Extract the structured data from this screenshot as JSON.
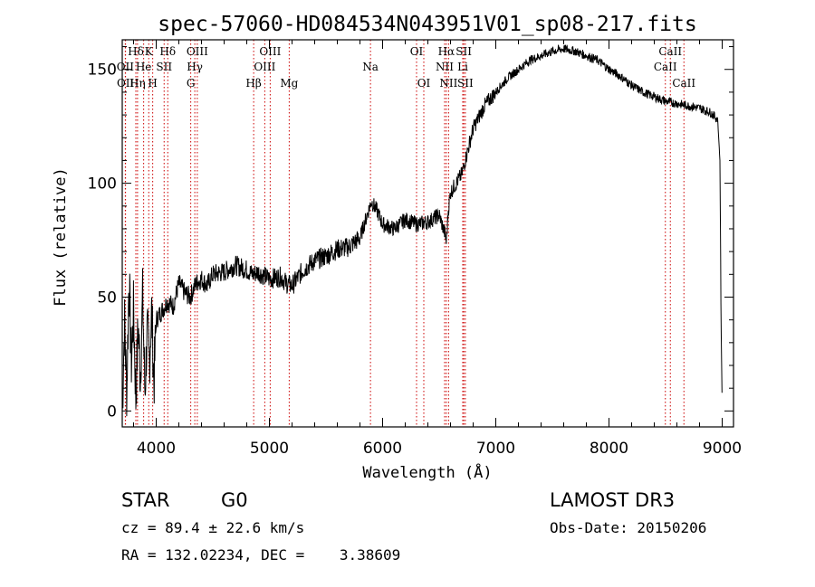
{
  "chart_data": {
    "type": "line",
    "title": "spec-57060-HD084534N043951V01_sp08-217.fits",
    "xlabel": "Wavelength (Å)",
    "ylabel": "Flux (relative)",
    "xlim": [
      3700,
      9100
    ],
    "ylim": [
      -7,
      163
    ],
    "x_ticks": [
      4000,
      5000,
      6000,
      7000,
      8000,
      9000
    ],
    "y_ticks": [
      0,
      50,
      100,
      150
    ],
    "series": [
      {
        "name": "flux",
        "x": [
          3700,
          3720,
          3740,
          3760,
          3780,
          3800,
          3820,
          3840,
          3860,
          3880,
          3900,
          3920,
          3940,
          3960,
          3980,
          4000,
          4050,
          4100,
          4150,
          4200,
          4250,
          4300,
          4350,
          4400,
          4450,
          4500,
          4600,
          4700,
          4800,
          4850,
          4900,
          5000,
          5100,
          5150,
          5200,
          5300,
          5400,
          5500,
          5600,
          5700,
          5800,
          5850,
          5900,
          5950,
          6000,
          6100,
          6200,
          6300,
          6400,
          6500,
          6550,
          6563,
          6580,
          6600,
          6700,
          6800,
          6900,
          7000,
          7100,
          7200,
          7300,
          7400,
          7500,
          7600,
          7700,
          7800,
          7900,
          8000,
          8100,
          8200,
          8300,
          8400,
          8500,
          8600,
          8700,
          8800,
          8900,
          8960,
          8980,
          8990,
          9000
        ],
        "values": [
          0,
          40,
          8,
          60,
          20,
          45,
          5,
          38,
          15,
          50,
          8,
          35,
          22,
          45,
          12,
          40,
          44,
          48,
          46,
          56,
          52,
          50,
          56,
          58,
          55,
          60,
          61,
          64,
          62,
          60,
          61,
          58,
          59,
          56,
          55,
          62,
          66,
          68,
          71,
          72,
          76,
          84,
          92,
          88,
          82,
          80,
          84,
          82,
          83,
          86,
          78,
          74,
          88,
          96,
          104,
          124,
          134,
          140,
          146,
          150,
          154,
          156,
          158,
          159,
          158,
          156,
          154,
          150,
          147,
          143,
          140,
          138,
          136,
          135,
          134,
          133,
          131,
          128,
          110,
          40,
          0
        ]
      }
    ],
    "line_markers": [
      {
        "label": "Hδ",
        "x": 3820,
        "row": 1
      },
      {
        "label": "OII",
        "x": 3727,
        "row": 2
      },
      {
        "label": "OII",
        "x": 3729,
        "row": 3
      },
      {
        "label": "K",
        "x": 3934,
        "row": 1
      },
      {
        "label": "He",
        "x": 3889,
        "row": 2
      },
      {
        "label": "Hη",
        "x": 3835,
        "row": 3
      },
      {
        "label": "SII",
        "x": 4070,
        "row": 2
      },
      {
        "label": "H",
        "x": 3969,
        "row": 3
      },
      {
        "label": "Hδ",
        "x": 4102,
        "row": 1
      },
      {
        "label": "OIII",
        "x": 4363,
        "row": 1
      },
      {
        "label": "Hγ",
        "x": 4341,
        "row": 2
      },
      {
        "label": "G",
        "x": 4305,
        "row": 3
      },
      {
        "label": "Hβ",
        "x": 4861,
        "row": 3
      },
      {
        "label": "OIII",
        "x": 5007,
        "row": 1
      },
      {
        "label": "OIII",
        "x": 4959,
        "row": 2
      },
      {
        "label": "Mg",
        "x": 5175,
        "row": 3
      },
      {
        "label": "Na",
        "x": 5893,
        "row": 2
      },
      {
        "label": "OI",
        "x": 6300,
        "row": 1
      },
      {
        "label": "OI",
        "x": 6364,
        "row": 3
      },
      {
        "label": "Hα",
        "x": 6563,
        "row": 1
      },
      {
        "label": "NII",
        "x": 6548,
        "row": 2
      },
      {
        "label": "NII",
        "x": 6583,
        "row": 3
      },
      {
        "label": "SII",
        "x": 6717,
        "row": 1
      },
      {
        "label": "Li",
        "x": 6708,
        "row": 2
      },
      {
        "label": "SII",
        "x": 6731,
        "row": 3
      },
      {
        "label": "CaII",
        "x": 8542,
        "row": 1
      },
      {
        "label": "CaII",
        "x": 8498,
        "row": 2
      },
      {
        "label": "CaII",
        "x": 8662,
        "row": 3
      }
    ]
  },
  "info": {
    "object_class": "STAR",
    "subclass": "G0",
    "survey": "LAMOST DR3",
    "cz": "cz = 89.4 ± 22.6 km/s",
    "obs_date": "Obs-Date: 20150206",
    "coords": "RA = 132.02234, DEC =    3.38609"
  },
  "colors": {
    "spectrum": "#000000",
    "marker": "#cc0000",
    "axes": "#000000"
  }
}
